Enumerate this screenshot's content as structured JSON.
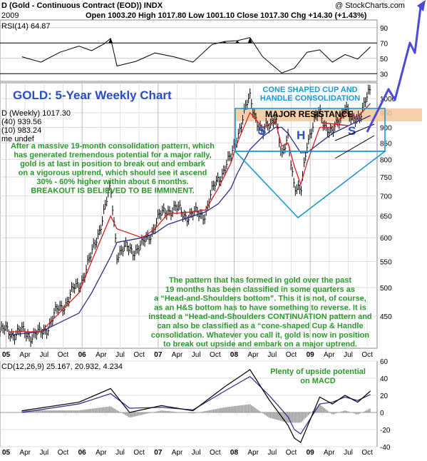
{
  "header": {
    "line1": "D (Gold - Continuous Contract (EOD)) INDX",
    "credit": "@ StockCharts.com",
    "date": "2009",
    "ohlc": "Open 1003.20  High 1017.80  Low 1001.10  Close 1017.30  Chg +14.30 (+1.43%)",
    "rsi_label": "RSI(14) 64.87",
    "price_legend": "D (Weekly) 1017.30",
    "ma40_legend": "(40) 939.56",
    "ma10_legend": "(10) 983.24",
    "vol_legend": "me undef",
    "macd_label": "CD(12,26,9) 25.167, 20.932, 4.234"
  },
  "annotations": {
    "title": "GOLD: 5-Year Weekly Chart",
    "cone_line1": "CONE SHAPED CUP AND",
    "cone_line2": "HANDLE CONSOLIDATION",
    "major_resistance": "MAJOR RESISTANCE",
    "s_left": "S",
    "h_head": "H",
    "s_right": "S",
    "left_note": [
      "After a massive 19-month consolidation pattern, which",
      "has generated tremendous potential for a major rally,",
      "gold is at last in position to break out and embark",
      "on a vigorous uptrend, which should see it ascend",
      "30% - 60% higher within about 6 months.",
      "BREAKOUT IS BELIEVED TO BE IMMINENT."
    ],
    "bottom_note": [
      "The pattern that has formed in gold over the past",
      "19 months has been classified in some quarters as",
      "a “Head-and-Shoulders bottom”. This it is not, of course,",
      "as an H&S bottom has to have something to reverse. It is",
      "instead a “Head-and-Shoulders CONTINUATION pattern and",
      "can also be classified as a “cone-shaped Cup & Handle",
      "consolidation. Whatever you call it, gold is now in position",
      "to break out upside and embark on a major uptrend."
    ],
    "macd_note_line1": "Plenty of upside potential",
    "macd_note_line2": "on MACD"
  },
  "colors": {
    "price": "#000000",
    "ma10": "#d42020",
    "ma40": "#2b2b8e",
    "annotation_green": "#2a9a2a",
    "annotation_blue": "#1a9ad6",
    "arrow": "#4a4ad8",
    "resistance_band": "#f7c79a",
    "rsi_fill": "#000000",
    "macd_hist": "#9a9a9a"
  },
  "chart_data": [
    {
      "type": "line",
      "name": "RSI(14)",
      "x": [
        "2005-03",
        "2005-06",
        "2005-09",
        "2005-12",
        "2006-02",
        "2006-04",
        "2006-05",
        "2006-06",
        "2006-09",
        "2006-12",
        "2007-03",
        "2007-06",
        "2007-09",
        "2007-11",
        "2008-01",
        "2008-03",
        "2008-05",
        "2008-08",
        "2008-10",
        "2008-12",
        "2009-02",
        "2009-04",
        "2009-06",
        "2009-08",
        "2009-10"
      ],
      "values": [
        52,
        45,
        58,
        66,
        60,
        69,
        76,
        40,
        46,
        57,
        52,
        45,
        68,
        72,
        73,
        77,
        52,
        31,
        37,
        58,
        61,
        45,
        55,
        49,
        65
      ],
      "ylim": [
        20,
        100
      ],
      "ticks": [
        30,
        50,
        70,
        90
      ]
    },
    {
      "type": "line",
      "title": "GOLD: 5-Year Weekly Chart",
      "x": [
        "2005-01",
        "2005-06",
        "2005-12",
        "2006-02",
        "2006-05",
        "2006-06",
        "2006-10",
        "2006-12",
        "2007-02",
        "2007-06",
        "2007-08",
        "2007-10",
        "2007-12",
        "2008-01",
        "2008-03",
        "2008-05",
        "2008-07",
        "2008-08",
        "2008-09",
        "2008-10",
        "2008-11",
        "2008-12",
        "2009-02",
        "2009-04",
        "2009-06",
        "2009-07",
        "2009-08",
        "2009-10"
      ],
      "series": [
        {
          "name": "D (Weekly)",
          "values": [
            425,
            420,
            505,
            560,
            715,
            570,
            580,
            630,
            670,
            650,
            660,
            750,
            800,
            880,
            1000,
            870,
            950,
            790,
            880,
            720,
            700,
            860,
            950,
            870,
            980,
            910,
            940,
            1017
          ]
        },
        {
          "name": "MA(10)",
          "values": [
            425,
            425,
            490,
            550,
            650,
            620,
            600,
            620,
            655,
            660,
            665,
            720,
            790,
            850,
            950,
            900,
            920,
            840,
            850,
            780,
            730,
            790,
            900,
            900,
            950,
            940,
            935,
            983
          ]
        },
        {
          "name": "MA(40)",
          "values": [
            420,
            425,
            455,
            490,
            560,
            590,
            600,
            610,
            630,
            650,
            660,
            680,
            720,
            760,
            830,
            870,
            900,
            900,
            880,
            850,
            820,
            820,
            850,
            880,
            900,
            910,
            920,
            940
          ]
        }
      ],
      "ylim": [
        400,
        1060
      ],
      "yscale": "log",
      "ticks": [
        450,
        500,
        550,
        600,
        650,
        700,
        750,
        800,
        850,
        900,
        950,
        1000
      ],
      "categories": [
        "05",
        "Apr",
        "Jul",
        "Oct",
        "06",
        "Apr",
        "Jul",
        "Oct",
        "07",
        "Apr",
        "Jul",
        "Oct",
        "08",
        "Apr",
        "Jul",
        "Oct",
        "09",
        "Apr",
        "Jul",
        "Oct"
      ]
    },
    {
      "type": "line",
      "name": "MACD(12,26,9)",
      "x": [
        "2005-03",
        "2005-12",
        "2006-05",
        "2006-08",
        "2007-01",
        "2007-06",
        "2007-11",
        "2008-03",
        "2008-06",
        "2008-09",
        "2008-10",
        "2008-11",
        "2009-02",
        "2009-04",
        "2009-06",
        "2009-08",
        "2009-10"
      ],
      "values": [
        2,
        12,
        28,
        0,
        8,
        2,
        30,
        50,
        15,
        -15,
        -30,
        -35,
        18,
        10,
        20,
        12,
        25
      ],
      "signal": [
        0,
        10,
        22,
        5,
        6,
        3,
        25,
        42,
        20,
        -5,
        -20,
        -25,
        10,
        12,
        18,
        14,
        21
      ],
      "ylim": [
        -40,
        60
      ],
      "ticks": [
        -40,
        -20,
        0,
        20,
        40,
        60
      ]
    }
  ]
}
